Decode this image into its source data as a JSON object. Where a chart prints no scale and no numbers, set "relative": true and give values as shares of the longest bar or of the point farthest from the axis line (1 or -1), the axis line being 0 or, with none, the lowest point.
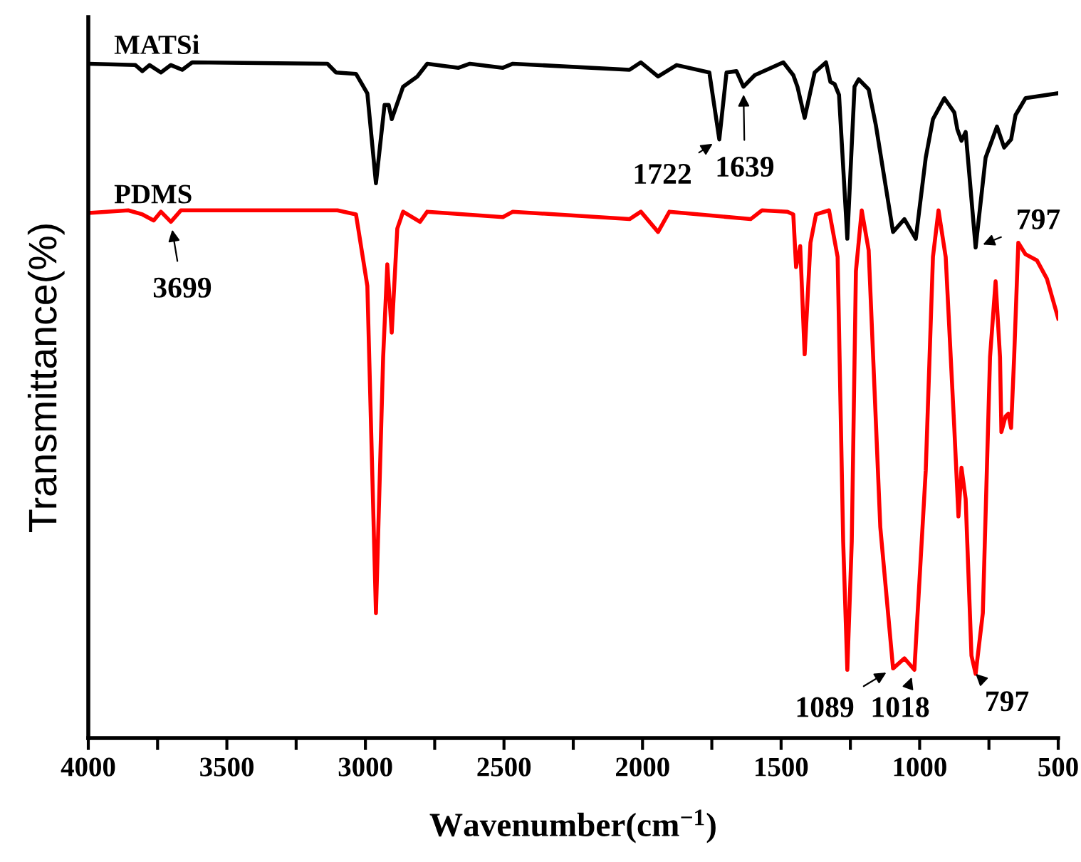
{
  "chart_data": {
    "type": "line",
    "relative": true,
    "xlabel": "Wavenumber(cm$^{−1}$)",
    "ylabel": "Transmittance(%)",
    "xlim": [
      4000,
      500
    ],
    "xticks": [
      4000,
      {
        "value": 3750,
        "label": null
      },
      3500,
      {
        "value": 3250,
        "label": null
      },
      3000,
      {
        "value": 2750,
        "label": null
      },
      2500,
      {
        "value": 2250,
        "label": null
      },
      2000,
      {
        "value": 1750,
        "label": null
      },
      1500,
      {
        "value": 1250,
        "label": null
      },
      1000,
      {
        "value": 750,
        "label": null
      },
      500
    ],
    "grid": false,
    "marker": "none",
    "line_style": "solid",
    "series": [
      {
        "name": "MATSi",
        "color": "#000000",
        "x": [
          4000,
          3830,
          3805,
          3779,
          3738,
          3702,
          3661,
          3625,
          3137,
          3106,
          3034,
          2993,
          2962,
          2931,
          2916,
          2905,
          2864,
          2813,
          2777,
          2664,
          2623,
          2504,
          2468,
          2047,
          2006,
          1944,
          1877,
          1759,
          1723,
          1697,
          1661,
          1636,
          1595,
          1492,
          1456,
          1441,
          1415,
          1379,
          1338,
          1322,
          1307,
          1291,
          1261,
          1235,
          1220,
          1184,
          1158,
          1096,
          1055,
          1014,
          978,
          952,
          911,
          875,
          864,
          849,
          834,
          798,
          762,
          721,
          695,
          670,
          654,
          618,
          505
        ],
        "values": [
          0.998,
          0.996,
          0.987,
          0.996,
          0.985,
          0.996,
          0.989,
          1.0,
          0.998,
          0.985,
          0.983,
          0.954,
          0.821,
          0.937,
          0.937,
          0.916,
          0.964,
          0.979,
          0.998,
          0.992,
          0.998,
          0.992,
          0.998,
          0.989,
          1.0,
          0.979,
          0.996,
          0.985,
          0.886,
          0.985,
          0.987,
          0.964,
          0.981,
          1.0,
          0.981,
          0.964,
          0.918,
          0.985,
          1.0,
          0.971,
          0.968,
          0.952,
          0.739,
          0.964,
          0.975,
          0.96,
          0.907,
          0.749,
          0.768,
          0.739,
          0.859,
          0.916,
          0.947,
          0.926,
          0.901,
          0.884,
          0.897,
          0.726,
          0.859,
          0.905,
          0.874,
          0.886,
          0.922,
          0.947,
          0.954
        ]
      },
      {
        "name": "PDMS",
        "color": "#ff0000",
        "x": [
          4000,
          3856,
          3805,
          3764,
          3738,
          3702,
          3666,
          3101,
          3034,
          2993,
          2962,
          2936,
          2921,
          2905,
          2885,
          2864,
          2803,
          2777,
          2504,
          2468,
          2047,
          2006,
          1944,
          1903,
          1610,
          1569,
          1477,
          1456,
          1446,
          1431,
          1415,
          1394,
          1374,
          1327,
          1296,
          1276,
          1261,
          1245,
          1230,
          1209,
          1184,
          1142,
          1096,
          1055,
          1019,
          978,
          952,
          932,
          906,
          875,
          860,
          849,
          834,
          813,
          798,
          772,
          746,
          726,
          710,
          705,
          690,
          680,
          670,
          659,
          644,
          618,
          577,
          541,
          500
        ],
        "values": [
          0.777,
          0.781,
          0.775,
          0.766,
          0.779,
          0.764,
          0.781,
          0.781,
          0.775,
          0.669,
          0.185,
          0.564,
          0.701,
          0.6,
          0.754,
          0.779,
          0.764,
          0.779,
          0.771,
          0.779,
          0.768,
          0.779,
          0.749,
          0.779,
          0.768,
          0.781,
          0.779,
          0.775,
          0.697,
          0.728,
          0.568,
          0.733,
          0.775,
          0.781,
          0.712,
          0.291,
          0.101,
          0.291,
          0.691,
          0.781,
          0.722,
          0.312,
          0.103,
          0.118,
          0.101,
          0.396,
          0.712,
          0.781,
          0.712,
          0.459,
          0.328,
          0.4,
          0.354,
          0.122,
          0.095,
          0.185,
          0.564,
          0.676,
          0.564,
          0.453,
          0.476,
          0.48,
          0.459,
          0.564,
          0.733,
          0.716,
          0.707,
          0.68,
          0.621
        ]
      }
    ],
    "annotations": [
      {
        "text": "1722",
        "x": 1723,
        "y": 0.886
      },
      {
        "text": "1639",
        "x": 1636,
        "y": 0.964
      },
      {
        "text": "797",
        "x": 798,
        "y": 0.726
      },
      {
        "text": "3699",
        "x": 3702,
        "y": 0.764
      },
      {
        "text": "1089",
        "x": 1096,
        "y": 0.103
      },
      {
        "text": "1018",
        "x": 1019,
        "y": 0.101
      },
      {
        "text": "797",
        "x": 798,
        "y": 0.095
      }
    ]
  }
}
